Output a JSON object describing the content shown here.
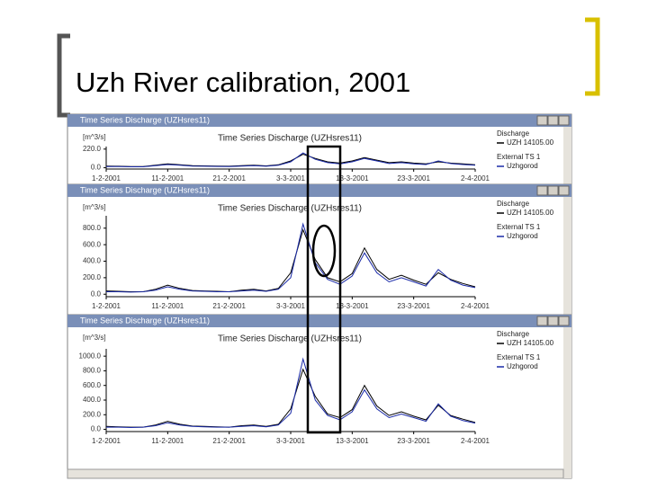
{
  "title": "Uzh River calibration, 2001",
  "windows": [
    {
      "title": "Time Series Discharge (UZHsres11)"
    },
    {
      "title": "Time Series Discharge (UZHsres11)"
    },
    {
      "title": "Time Series Discharge (UZHsres11)"
    }
  ],
  "chart_data": [
    {
      "type": "line",
      "title": "Time Series Discharge (UZHsres11)",
      "ylabel": "[m^3/s]",
      "categories": [
        "1-2-2001",
        null,
        null,
        null,
        null,
        "11-2-2001",
        null,
        null,
        null,
        null,
        "21-2-2001",
        null,
        null,
        null,
        null,
        "3-3-2001",
        null,
        null,
        null,
        null,
        "13-3-2001",
        null,
        null,
        null,
        null,
        "23-3-2001",
        null,
        null,
        null,
        null,
        "2-4-2001"
      ],
      "ylim": [
        -15,
        250
      ],
      "yticks": [
        {
          "value": 0,
          "label": "0.0"
        },
        {
          "value": 220,
          "label": "220.0"
        }
      ],
      "series": [
        {
          "name": "Discharge",
          "station": "UZH 14105.00",
          "color": "#000000",
          "values": [
            20,
            18,
            15,
            15,
            30,
            45,
            35,
            25,
            22,
            20,
            18,
            25,
            30,
            22,
            35,
            80,
            160,
            110,
            70,
            55,
            80,
            120,
            90,
            60,
            70,
            55,
            45,
            70,
            55,
            45,
            35
          ]
        },
        {
          "name": "External TS 1",
          "station": "Uzhgorod",
          "color": "#1a2aa8",
          "values": [
            15,
            14,
            12,
            12,
            25,
            38,
            30,
            20,
            18,
            16,
            15,
            20,
            25,
            18,
            30,
            70,
            175,
            100,
            60,
            45,
            70,
            110,
            80,
            50,
            60,
            45,
            38,
            80,
            50,
            38,
            30
          ]
        }
      ]
    },
    {
      "type": "line",
      "title": "Time Series Discharge (UZHsres11)",
      "ylabel": "[m^3/s]",
      "categories": [
        "1-2-2001",
        null,
        null,
        null,
        null,
        "11-2-2001",
        null,
        null,
        null,
        null,
        "21-2-2001",
        null,
        null,
        null,
        null,
        "3-3-2001",
        null,
        null,
        null,
        null,
        "13-3-2001",
        null,
        null,
        null,
        null,
        "23-3-2001",
        null,
        null,
        null,
        null,
        "2-4-2001"
      ],
      "ylim": [
        -30,
        950
      ],
      "yticks": [
        {
          "value": 0,
          "label": "0.0"
        },
        {
          "value": 200,
          "label": "200.0"
        },
        {
          "value": 400,
          "label": "400.0"
        },
        {
          "value": 600,
          "label": "600.0"
        },
        {
          "value": 800,
          "label": "800.0"
        }
      ],
      "series": [
        {
          "name": "Discharge",
          "station": "UZH 14105.00",
          "color": "#000000",
          "values": [
            40,
            35,
            30,
            30,
            60,
            110,
            70,
            45,
            40,
            35,
            30,
            50,
            60,
            40,
            70,
            260,
            780,
            420,
            200,
            150,
            250,
            560,
            300,
            180,
            230,
            170,
            120,
            260,
            180,
            130,
            90
          ]
        },
        {
          "name": "External TS 1",
          "station": "Uzhgorod",
          "color": "#1a2aa8",
          "values": [
            30,
            30,
            25,
            30,
            50,
            90,
            60,
            40,
            35,
            30,
            30,
            40,
            50,
            35,
            60,
            200,
            850,
            380,
            180,
            120,
            220,
            500,
            260,
            150,
            200,
            150,
            100,
            300,
            170,
            110,
            80
          ]
        }
      ]
    },
    {
      "type": "line",
      "title": "Time Series Discharge (UZHsres11)",
      "ylabel": "[m^3/s]",
      "categories": [
        "1-2-2001",
        null,
        null,
        null,
        null,
        "11-2-2001",
        null,
        null,
        null,
        null,
        "21-2-2001",
        null,
        null,
        null,
        null,
        "3-3-2001",
        null,
        null,
        null,
        null,
        "13-3-2001",
        null,
        null,
        null,
        null,
        "23-3-2001",
        null,
        null,
        null,
        null,
        "2-4-2001"
      ],
      "ylim": [
        -30,
        1100
      ],
      "yticks": [
        {
          "value": 0,
          "label": "0.0"
        },
        {
          "value": 200,
          "label": "200.0"
        },
        {
          "value": 400,
          "label": "400.0"
        },
        {
          "value": 600,
          "label": "600.0"
        },
        {
          "value": 800,
          "label": "800.0"
        },
        {
          "value": 1000,
          "label": "1000.0"
        }
      ],
      "series": [
        {
          "name": "Discharge",
          "station": "UZH 14105.00",
          "color": "#000000",
          "values": [
            40,
            35,
            30,
            30,
            60,
            110,
            70,
            45,
            40,
            35,
            30,
            50,
            60,
            40,
            70,
            280,
            820,
            450,
            210,
            160,
            270,
            600,
            320,
            190,
            240,
            180,
            130,
            330,
            190,
            140,
            95
          ]
        },
        {
          "name": "External TS 1",
          "station": "Uzhgorod",
          "color": "#1a2aa8",
          "values": [
            30,
            30,
            25,
            30,
            50,
            90,
            60,
            40,
            35,
            30,
            30,
            40,
            50,
            35,
            60,
            220,
            960,
            400,
            190,
            130,
            240,
            540,
            280,
            160,
            210,
            160,
            110,
            350,
            180,
            120,
            85
          ]
        }
      ]
    }
  ]
}
